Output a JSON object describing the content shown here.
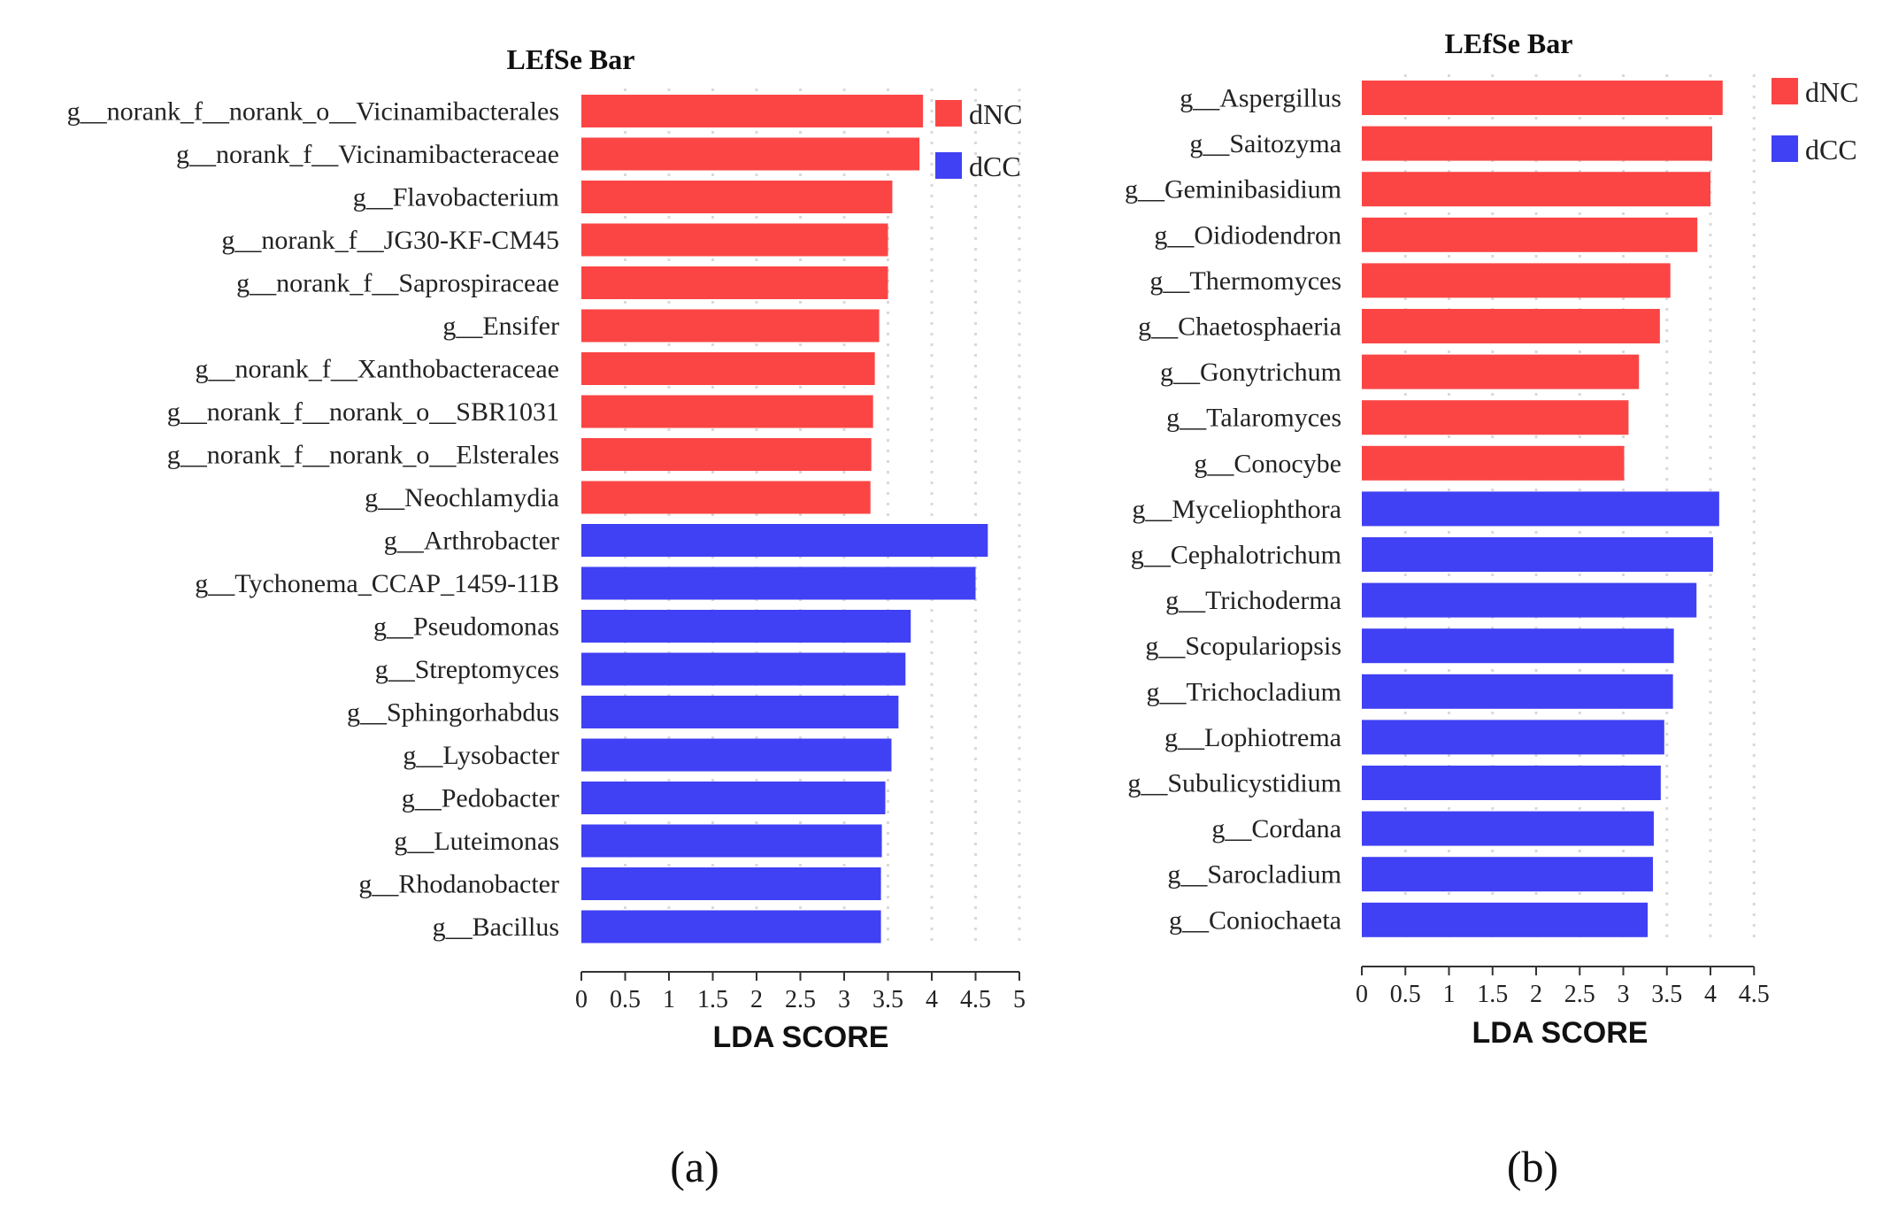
{
  "colors": {
    "dNC": "#fb4545",
    "dCC": "#4040f4",
    "grid": "#d9d9d9",
    "axis": "#333333"
  },
  "chart_data": [
    {
      "type": "bar",
      "orientation": "horizontal",
      "title": "LEfSe Bar",
      "xlabel": "LDA SCORE",
      "ylabel": "",
      "xlim": [
        0,
        5
      ],
      "xticks": [
        0,
        0.5,
        1,
        1.5,
        2,
        2.5,
        3,
        3.5,
        4,
        4.5,
        5
      ],
      "xtick_labels": [
        "0",
        "0.5",
        "1",
        "1.5",
        "2",
        "2.5",
        "3",
        "3.5",
        "4",
        "4.5",
        "5"
      ],
      "grid": "vertical dotted",
      "legend": {
        "position": "top-right",
        "entries": [
          "dNC",
          "dCC"
        ]
      },
      "caption": "(a)",
      "categories": [
        "g__norank_f__norank_o__Vicinamibacterales",
        "g__norank_f__Vicinamibacteraceae",
        "g__Flavobacterium",
        "g__norank_f__JG30-KF-CM45",
        "g__norank_f__Saprospiraceae",
        "g__Ensifer",
        "g__norank_f__Xanthobacteraceae",
        "g__norank_f__norank_o__SBR1031",
        "g__norank_f__norank_o__Elsterales",
        "g__Neochlamydia",
        "g__Arthrobacter",
        "g__Tychonema_CCAP_1459-11B",
        "g__Pseudomonas",
        "g__Streptomyces",
        "g__Sphingorhabdus",
        "g__Lysobacter",
        "g__Pedobacter",
        "g__Luteimonas",
        "g__Rhodanobacter",
        "g__Bacillus"
      ],
      "values": [
        3.9,
        3.86,
        3.55,
        3.5,
        3.5,
        3.4,
        3.35,
        3.33,
        3.31,
        3.3,
        4.64,
        4.5,
        3.76,
        3.7,
        3.62,
        3.54,
        3.47,
        3.43,
        3.42,
        3.42
      ],
      "groups": [
        "dNC",
        "dNC",
        "dNC",
        "dNC",
        "dNC",
        "dNC",
        "dNC",
        "dNC",
        "dNC",
        "dNC",
        "dCC",
        "dCC",
        "dCC",
        "dCC",
        "dCC",
        "dCC",
        "dCC",
        "dCC",
        "dCC",
        "dCC"
      ]
    },
    {
      "type": "bar",
      "orientation": "horizontal",
      "title": "LEfSe Bar",
      "xlabel": "LDA SCORE",
      "ylabel": "",
      "xlim": [
        0,
        4.5
      ],
      "xticks": [
        0,
        0.5,
        1,
        1.5,
        2,
        2.5,
        3,
        3.5,
        4,
        4.5
      ],
      "xtick_labels": [
        "0",
        "0.5",
        "1",
        "1.5",
        "2",
        "2.5",
        "3",
        "3.5",
        "4",
        "4.5"
      ],
      "grid": "vertical dotted",
      "legend": {
        "position": "top-right",
        "entries": [
          "dNC",
          "dCC"
        ]
      },
      "caption": "(b)",
      "categories": [
        "g__Aspergillus",
        "g__Saitozyma",
        "g__Geminibasidium",
        "g__Oidiodendron",
        "g__Thermomyces",
        "g__Chaetosphaeria",
        "g__Gonytrichum",
        "g__Talaromyces",
        "g__Conocybe",
        "g__Myceliophthora",
        "g__Cephalotrichum",
        "g__Trichoderma",
        "g__Scopulariopsis",
        "g__Trichocladium",
        "g__Lophiotrema",
        "g__Subulicystidium",
        "g__Cordana",
        "g__Sarocladium",
        "g__Coniochaeta"
      ],
      "values": [
        4.14,
        4.02,
        4.0,
        3.85,
        3.54,
        3.42,
        3.18,
        3.06,
        3.01,
        4.1,
        4.03,
        3.84,
        3.58,
        3.57,
        3.47,
        3.43,
        3.35,
        3.34,
        3.28
      ],
      "groups": [
        "dNC",
        "dNC",
        "dNC",
        "dNC",
        "dNC",
        "dNC",
        "dNC",
        "dNC",
        "dNC",
        "dCC",
        "dCC",
        "dCC",
        "dCC",
        "dCC",
        "dCC",
        "dCC",
        "dCC",
        "dCC",
        "dCC"
      ]
    }
  ]
}
